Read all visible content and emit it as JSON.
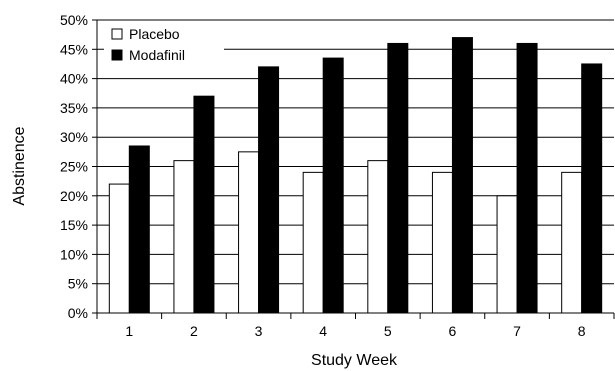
{
  "chart_data": {
    "type": "bar",
    "xlabel": "Study Week",
    "ylabel": "Abstinence",
    "ylim": [
      0,
      50
    ],
    "ytick_step": 5,
    "ytick_labels": [
      "0%",
      "5%",
      "10%",
      "15%",
      "20%",
      "25%",
      "30%",
      "35%",
      "40%",
      "45%",
      "50%"
    ],
    "categories": [
      "1",
      "2",
      "3",
      "4",
      "5",
      "6",
      "7",
      "8"
    ],
    "grid": "horizontal",
    "legend_position": "top-left",
    "series": [
      {
        "name": "Placebo",
        "values": [
          22,
          26,
          27.5,
          24,
          26,
          24,
          20,
          24
        ],
        "color": "#ffffff"
      },
      {
        "name": "Modafinil",
        "values": [
          28.5,
          37,
          42,
          43.5,
          46,
          47,
          46,
          42.5
        ],
        "color": "#000000"
      }
    ]
  }
}
